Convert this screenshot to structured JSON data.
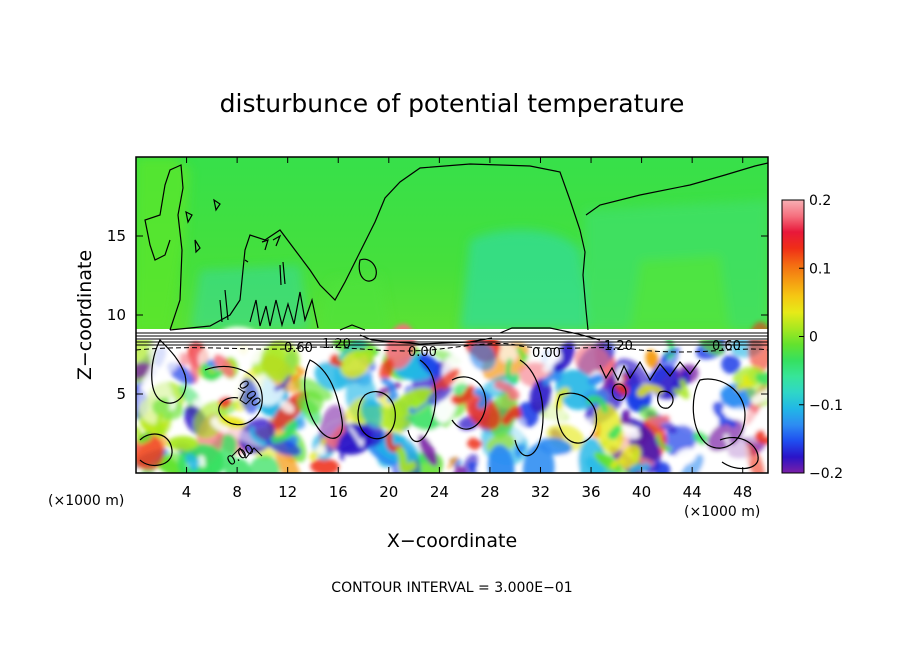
{
  "chart_data": {
    "type": "heatmap",
    "title": "disturbunce of potential temperature",
    "xlabel": "X−coordinate",
    "ylabel": "Z−coordinate",
    "x_unit_left": "(×1000 m)",
    "x_unit_right": "(×1000 m)",
    "xlim": [
      0,
      50
    ],
    "ylim": [
      0,
      20
    ],
    "x_ticks": [
      4,
      8,
      12,
      16,
      20,
      24,
      28,
      32,
      36,
      40,
      44,
      48
    ],
    "x_tick_labels": [
      "4",
      "8",
      "12",
      "16",
      "20",
      "24",
      "28",
      "32",
      "36",
      "40",
      "44",
      "48"
    ],
    "y_ticks": [
      5,
      10,
      15
    ],
    "y_tick_labels": [
      "5",
      "10",
      "15"
    ],
    "colorbar": {
      "range": [
        -0.2,
        0.2
      ],
      "tick_values": [
        0.2,
        0.1,
        0,
        -0.1,
        -0.2
      ],
      "tick_labels": [
        "0.2",
        "0.1",
        "0",
        "−0.1",
        "−0.2"
      ],
      "colors": [
        "#7a1fa6",
        "#2a14c8",
        "#1f4ef0",
        "#2d8cf2",
        "#21b7e6",
        "#2fd6c8",
        "#37e59a",
        "#35e060",
        "#63e22e",
        "#a8e820",
        "#e6ea18",
        "#f5c813",
        "#f59a12",
        "#f46a12",
        "#ef2e17",
        "#e8183a",
        "#f5707e",
        "#f8b0b4"
      ]
    },
    "contour_labels": [
      "0.60",
      "1.20",
      "0.00",
      "0.00",
      "1.20",
      "0.60",
      "0.00",
      "0.00"
    ],
    "footnote": "CONTOUR INTERVAL = 3.000E−01"
  }
}
